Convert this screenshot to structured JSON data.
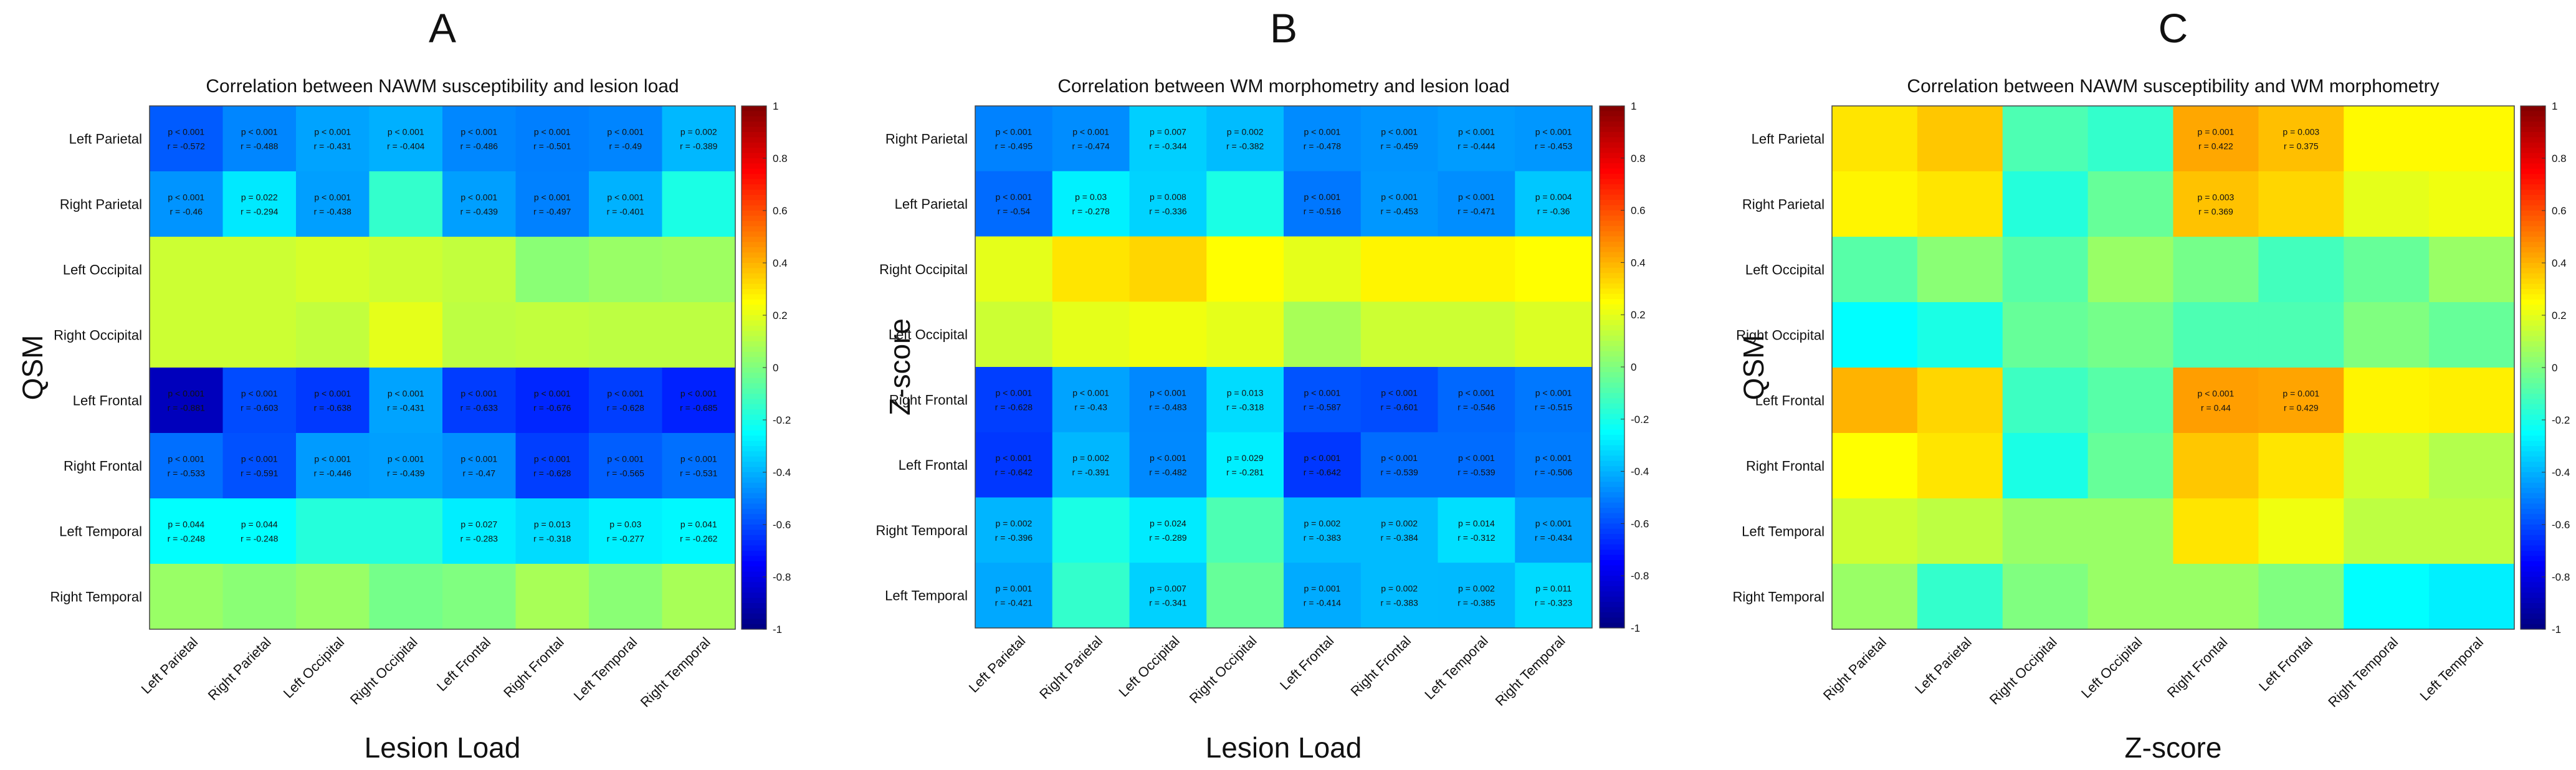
{
  "chart_data": [
    {
      "type": "heatmap",
      "panel_label": "A",
      "title": "Correlation between NAWM susceptibility and lesion load",
      "xlabel": "Lesion Load",
      "ylabel": "QSM",
      "x_categories": [
        "Left Parietal",
        "Right Parietal",
        "Left Occipital",
        "Right Occipital",
        "Left Frontal",
        "Right Frontal",
        "Left Temporal",
        "Right Temporal"
      ],
      "y_categories": [
        "Left Parietal",
        "Right Parietal",
        "Left Occipital",
        "Right Occipital",
        "Left Frontal",
        "Right Frontal",
        "Left Temporal",
        "Right Temporal"
      ],
      "values": [
        [
          -0.572,
          -0.488,
          -0.431,
          -0.404,
          -0.486,
          -0.501,
          -0.49,
          -0.389
        ],
        [
          -0.46,
          -0.294,
          -0.438,
          -0.15,
          -0.439,
          -0.497,
          -0.401,
          -0.2
        ],
        [
          0.15,
          0.15,
          0.17,
          0.15,
          0.13,
          0.02,
          0.05,
          0.06
        ],
        [
          0.15,
          0.15,
          0.13,
          0.2,
          0.12,
          0.13,
          0.12,
          0.12
        ],
        [
          -0.881,
          -0.603,
          -0.638,
          -0.431,
          -0.633,
          -0.676,
          -0.628,
          -0.685
        ],
        [
          -0.533,
          -0.591,
          -0.446,
          -0.439,
          -0.47,
          -0.628,
          -0.565,
          -0.531
        ],
        [
          -0.248,
          -0.248,
          -0.18,
          -0.18,
          -0.283,
          -0.318,
          -0.277,
          -0.262
        ],
        [
          0.05,
          0.02,
          0.05,
          -0.02,
          0.0,
          0.08,
          0.02,
          0.08
        ]
      ],
      "annotations": [
        [
          [
            "p < 0.001",
            "r = -0.572"
          ],
          [
            "p < 0.001",
            "r = -0.488"
          ],
          [
            "p < 0.001",
            "r = -0.431"
          ],
          [
            "p < 0.001",
            "r = -0.404"
          ],
          [
            "p < 0.001",
            "r = -0.486"
          ],
          [
            "p < 0.001",
            "r = -0.501"
          ],
          [
            "p < 0.001",
            "r = -0.49"
          ],
          [
            "p = 0.002",
            "r = -0.389"
          ]
        ],
        [
          [
            "p < 0.001",
            "r = -0.46"
          ],
          [
            "p = 0.022",
            "r = -0.294"
          ],
          [
            "p < 0.001",
            "r = -0.438"
          ],
          null,
          [
            "p < 0.001",
            "r = -0.439"
          ],
          [
            "p < 0.001",
            "r = -0.497"
          ],
          [
            "p < 0.001",
            "r = -0.401"
          ],
          null
        ],
        [
          null,
          null,
          null,
          null,
          null,
          null,
          null,
          null
        ],
        [
          null,
          null,
          null,
          null,
          null,
          null,
          null,
          null
        ],
        [
          [
            "p < 0.001",
            "r = -0.881"
          ],
          [
            "p < 0.001",
            "r = -0.603"
          ],
          [
            "p < 0.001",
            "r = -0.638"
          ],
          [
            "p < 0.001",
            "r = -0.431"
          ],
          [
            "p < 0.001",
            "r = -0.633"
          ],
          [
            "p < 0.001",
            "r = -0.676"
          ],
          [
            "p < 0.001",
            "r = -0.628"
          ],
          [
            "p < 0.001",
            "r = -0.685"
          ]
        ],
        [
          [
            "p < 0.001",
            "r = -0.533"
          ],
          [
            "p < 0.001",
            "r = -0.591"
          ],
          [
            "p < 0.001",
            "r = -0.446"
          ],
          [
            "p < 0.001",
            "r = -0.439"
          ],
          [
            "p < 0.001",
            "r = -0.47"
          ],
          [
            "p < 0.001",
            "r = -0.628"
          ],
          [
            "p < 0.001",
            "r = -0.565"
          ],
          [
            "p < 0.001",
            "r = -0.531"
          ]
        ],
        [
          [
            "p = 0.044",
            "r = -0.248"
          ],
          [
            "p = 0.044",
            "r = -0.248"
          ],
          null,
          null,
          [
            "p = 0.027",
            "r = -0.283"
          ],
          [
            "p = 0.013",
            "r = -0.318"
          ],
          [
            "p = 0.03",
            "r = -0.277"
          ],
          [
            "p = 0.041",
            "r = -0.262"
          ]
        ],
        [
          null,
          null,
          null,
          null,
          null,
          null,
          null,
          null
        ]
      ],
      "colorbar": {
        "min": -1,
        "max": 1,
        "ticks": [
          "1",
          "0.8",
          "0.6",
          "0.4",
          "0.2",
          "0",
          "-0.2",
          "-0.4",
          "-0.6",
          "-0.8",
          "-1"
        ]
      }
    },
    {
      "type": "heatmap",
      "panel_label": "B",
      "title": "Correlation between WM morphometry and lesion load",
      "xlabel": "Lesion Load",
      "ylabel": "Z-score",
      "x_categories": [
        "Left Parietal",
        "Right Parietal",
        "Left Occipital",
        "Right Occipital",
        "Left Frontal",
        "Right Frontal",
        "Left Temporal",
        "Right Temporal"
      ],
      "y_categories": [
        "Right Parietal",
        "Left Parietal",
        "Right Occipital",
        "Left Occipital",
        "Right Frontal",
        "Left Frontal",
        "Right Temporal",
        "Left Temporal"
      ],
      "values": [
        [
          -0.495,
          -0.474,
          -0.344,
          -0.382,
          -0.478,
          -0.459,
          -0.444,
          -0.453
        ],
        [
          -0.54,
          -0.278,
          -0.336,
          -0.2,
          -0.516,
          -0.453,
          -0.471,
          -0.36
        ],
        [
          0.2,
          0.3,
          0.33,
          0.25,
          0.2,
          0.27,
          0.27,
          0.25
        ],
        [
          0.15,
          0.2,
          0.22,
          0.2,
          0.08,
          0.15,
          0.15,
          0.18
        ],
        [
          -0.628,
          -0.43,
          -0.483,
          -0.318,
          -0.587,
          -0.601,
          -0.546,
          -0.515
        ],
        [
          -0.642,
          -0.391,
          -0.482,
          -0.281,
          -0.642,
          -0.539,
          -0.539,
          -0.506
        ],
        [
          -0.396,
          -0.2,
          -0.289,
          -0.1,
          -0.383,
          -0.384,
          -0.312,
          -0.434
        ],
        [
          -0.421,
          -0.15,
          -0.341,
          -0.05,
          -0.414,
          -0.383,
          -0.385,
          -0.323
        ]
      ],
      "annotations": [
        [
          [
            "p < 0.001",
            "r = -0.495"
          ],
          [
            "p < 0.001",
            "r = -0.474"
          ],
          [
            "p = 0.007",
            "r = -0.344"
          ],
          [
            "p = 0.002",
            "r = -0.382"
          ],
          [
            "p < 0.001",
            "r = -0.478"
          ],
          [
            "p < 0.001",
            "r = -0.459"
          ],
          [
            "p < 0.001",
            "r = -0.444"
          ],
          [
            "p < 0.001",
            "r = -0.453"
          ]
        ],
        [
          [
            "p < 0.001",
            "r = -0.54"
          ],
          [
            "p = 0.03",
            "r = -0.278"
          ],
          [
            "p = 0.008",
            "r = -0.336"
          ],
          null,
          [
            "p < 0.001",
            "r = -0.516"
          ],
          [
            "p < 0.001",
            "r = -0.453"
          ],
          [
            "p < 0.001",
            "r = -0.471"
          ],
          [
            "p = 0.004",
            "r = -0.36"
          ]
        ],
        [
          null,
          null,
          null,
          null,
          null,
          null,
          null,
          null
        ],
        [
          null,
          null,
          null,
          null,
          null,
          null,
          null,
          null
        ],
        [
          [
            "p < 0.001",
            "r = -0.628"
          ],
          [
            "p < 0.001",
            "r = -0.43"
          ],
          [
            "p < 0.001",
            "r = -0.483"
          ],
          [
            "p = 0.013",
            "r = -0.318"
          ],
          [
            "p < 0.001",
            "r = -0.587"
          ],
          [
            "p < 0.001",
            "r = -0.601"
          ],
          [
            "p < 0.001",
            "r = -0.546"
          ],
          [
            "p < 0.001",
            "r = -0.515"
          ]
        ],
        [
          [
            "p < 0.001",
            "r = -0.642"
          ],
          [
            "p = 0.002",
            "r = -0.391"
          ],
          [
            "p < 0.001",
            "r = -0.482"
          ],
          [
            "p = 0.029",
            "r = -0.281"
          ],
          [
            "p < 0.001",
            "r = -0.642"
          ],
          [
            "p < 0.001",
            "r = -0.539"
          ],
          [
            "p < 0.001",
            "r = -0.539"
          ],
          [
            "p < 0.001",
            "r = -0.506"
          ]
        ],
        [
          [
            "p = 0.002",
            "r = -0.396"
          ],
          null,
          [
            "p = 0.024",
            "r = -0.289"
          ],
          null,
          [
            "p = 0.002",
            "r = -0.383"
          ],
          [
            "p = 0.002",
            "r = -0.384"
          ],
          [
            "p = 0.014",
            "r = -0.312"
          ],
          [
            "p < 0.001",
            "r = -0.434"
          ]
        ],
        [
          [
            "p = 0.001",
            "r = -0.421"
          ],
          null,
          [
            "p = 0.007",
            "r = -0.341"
          ],
          null,
          [
            "p = 0.001",
            "r = -0.414"
          ],
          [
            "p = 0.002",
            "r = -0.383"
          ],
          [
            "p = 0.002",
            "r = -0.385"
          ],
          [
            "p = 0.011",
            "r = -0.323"
          ]
        ]
      ],
      "colorbar": {
        "min": -1,
        "max": 1,
        "ticks": [
          "1",
          "0.8",
          "0.6",
          "0.4",
          "0.2",
          "0",
          "-0.2",
          "-0.4",
          "-0.6",
          "-0.8",
          "-1"
        ]
      }
    },
    {
      "type": "heatmap",
      "panel_label": "C",
      "title": "Correlation between NAWM susceptibility and WM morphometry",
      "xlabel": "Z-score",
      "ylabel": "QSM",
      "x_categories": [
        "Right Parietal",
        "Left Parietal",
        "Right Occipital",
        "Left Occipital",
        "Right Frontal",
        "Left Frontal",
        "Right Temporal",
        "Left Temporal"
      ],
      "y_categories": [
        "Left Parietal",
        "Right Parietal",
        "Left Occipital",
        "Right Occipital",
        "Left Frontal",
        "Right Frontal",
        "Left Temporal",
        "Right Temporal"
      ],
      "values": [
        [
          0.3,
          0.36,
          -0.1,
          -0.15,
          0.422,
          0.375,
          0.26,
          0.26
        ],
        [
          0.27,
          0.3,
          -0.18,
          -0.05,
          0.369,
          0.33,
          0.2,
          0.22
        ],
        [
          -0.08,
          0.02,
          -0.08,
          0.05,
          -0.02,
          -0.12,
          -0.05,
          0.05
        ],
        [
          -0.25,
          -0.2,
          -0.05,
          -0.02,
          -0.1,
          -0.1,
          0.0,
          -0.05
        ],
        [
          0.4,
          0.33,
          -0.13,
          -0.08,
          0.44,
          0.429,
          0.27,
          0.28
        ],
        [
          0.25,
          0.3,
          -0.2,
          -0.05,
          0.36,
          0.3,
          0.16,
          0.1
        ],
        [
          0.15,
          0.12,
          0.05,
          0.05,
          0.3,
          0.22,
          0.12,
          0.12
        ],
        [
          0.05,
          -0.15,
          0.0,
          0.05,
          0.05,
          0.0,
          -0.25,
          -0.28
        ]
      ],
      "annotations": [
        [
          null,
          null,
          null,
          null,
          [
            "p = 0.001",
            "r = 0.422"
          ],
          [
            "p = 0.003",
            "r = 0.375"
          ],
          null,
          null
        ],
        [
          null,
          null,
          null,
          null,
          [
            "p = 0.003",
            "r = 0.369"
          ],
          null,
          null,
          null
        ],
        [
          null,
          null,
          null,
          null,
          null,
          null,
          null,
          null
        ],
        [
          null,
          null,
          null,
          null,
          null,
          null,
          null,
          null
        ],
        [
          null,
          null,
          null,
          null,
          [
            "p < 0.001",
            "r = 0.44"
          ],
          [
            "p = 0.001",
            "r = 0.429"
          ],
          null,
          null
        ],
        [
          null,
          null,
          null,
          null,
          null,
          null,
          null,
          null
        ],
        [
          null,
          null,
          null,
          null,
          null,
          null,
          null,
          null
        ],
        [
          null,
          null,
          null,
          null,
          null,
          null,
          null,
          null
        ]
      ],
      "colorbar": {
        "min": -1,
        "max": 1,
        "ticks": [
          "1",
          "0.8",
          "0.6",
          "0.4",
          "0.2",
          "0",
          "-0.2",
          "-0.4",
          "-0.6",
          "-0.8",
          "-1"
        ]
      }
    }
  ]
}
